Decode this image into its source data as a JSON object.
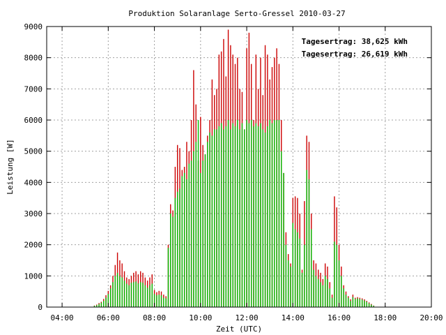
{
  "chart_data": {
    "type": "bar",
    "title": "Produktion Solaranlage Serto-Gressel 2010-03-27",
    "xlabel": "Zeit (UTC)",
    "ylabel": "Leistung [W]",
    "xlim": [
      3.333,
      20.0
    ],
    "ylim": [
      0,
      9000
    ],
    "yticks": [
      0,
      1000,
      2000,
      3000,
      4000,
      5000,
      6000,
      7000,
      8000,
      9000
    ],
    "xticks": [
      {
        "value": 4,
        "label": "04:00"
      },
      {
        "value": 6,
        "label": "06:00"
      },
      {
        "value": 8,
        "label": "08:00"
      },
      {
        "value": 10,
        "label": "10:00"
      },
      {
        "value": 12,
        "label": "12:00"
      },
      {
        "value": 14,
        "label": "14:00"
      },
      {
        "value": 16,
        "label": "16:00"
      },
      {
        "value": 18,
        "label": "18:00"
      },
      {
        "value": 20,
        "label": "20:00"
      }
    ],
    "grid": true,
    "legend_position": "top-right",
    "series": [
      {
        "name": "Tagesertrag: 38,625 kWh",
        "color": "#cc0000",
        "points": [
          [
            5.4,
            50
          ],
          [
            5.5,
            80
          ],
          [
            5.6,
            130
          ],
          [
            5.7,
            170
          ],
          [
            5.8,
            260
          ],
          [
            5.9,
            380
          ],
          [
            6.0,
            520
          ],
          [
            6.1,
            700
          ],
          [
            6.2,
            1000
          ],
          [
            6.3,
            1350
          ],
          [
            6.4,
            1750
          ],
          [
            6.5,
            1500
          ],
          [
            6.6,
            1400
          ],
          [
            6.7,
            1150
          ],
          [
            6.8,
            950
          ],
          [
            6.9,
            900
          ],
          [
            7.0,
            1000
          ],
          [
            7.1,
            1100
          ],
          [
            7.2,
            1150
          ],
          [
            7.3,
            1050
          ],
          [
            7.4,
            1150
          ],
          [
            7.5,
            1100
          ],
          [
            7.6,
            950
          ],
          [
            7.7,
            850
          ],
          [
            7.8,
            950
          ],
          [
            7.9,
            1050
          ],
          [
            8.0,
            550
          ],
          [
            8.1,
            480
          ],
          [
            8.2,
            520
          ],
          [
            8.3,
            500
          ],
          [
            8.4,
            400
          ],
          [
            8.5,
            350
          ],
          [
            8.6,
            2000
          ],
          [
            8.7,
            3300
          ],
          [
            8.8,
            3100
          ],
          [
            8.9,
            4500
          ],
          [
            9.0,
            5200
          ],
          [
            9.1,
            5100
          ],
          [
            9.2,
            4400
          ],
          [
            9.3,
            4500
          ],
          [
            9.4,
            5300
          ],
          [
            9.5,
            5000
          ],
          [
            9.6,
            6000
          ],
          [
            9.7,
            7600
          ],
          [
            9.8,
            6500
          ],
          [
            9.9,
            4700
          ],
          [
            10.0,
            6100
          ],
          [
            10.1,
            5200
          ],
          [
            10.2,
            4900
          ],
          [
            10.3,
            5500
          ],
          [
            10.4,
            6000
          ],
          [
            10.5,
            7300
          ],
          [
            10.6,
            6800
          ],
          [
            10.7,
            7000
          ],
          [
            10.8,
            8100
          ],
          [
            10.9,
            8200
          ],
          [
            11.0,
            8600
          ],
          [
            11.1,
            7400
          ],
          [
            11.2,
            8900
          ],
          [
            11.3,
            8400
          ],
          [
            11.4,
            8100
          ],
          [
            11.5,
            7800
          ],
          [
            11.6,
            8000
          ],
          [
            11.7,
            7000
          ],
          [
            11.8,
            6900
          ],
          [
            11.9,
            5700
          ],
          [
            12.0,
            8300
          ],
          [
            12.1,
            8800
          ],
          [
            12.2,
            7800
          ],
          [
            12.3,
            6000
          ],
          [
            12.4,
            8100
          ],
          [
            12.5,
            7000
          ],
          [
            12.6,
            8000
          ],
          [
            12.7,
            6800
          ],
          [
            12.8,
            8400
          ],
          [
            12.9,
            8100
          ],
          [
            13.0,
            7300
          ],
          [
            13.1,
            7700
          ],
          [
            13.2,
            8000
          ],
          [
            13.3,
            8300
          ],
          [
            13.4,
            7800
          ],
          [
            13.5,
            6000
          ],
          [
            13.6,
            4300
          ],
          [
            13.7,
            2400
          ],
          [
            13.8,
            1700
          ],
          [
            13.9,
            1400
          ],
          [
            14.0,
            3500
          ],
          [
            14.1,
            3550
          ],
          [
            14.2,
            3500
          ],
          [
            14.3,
            3000
          ],
          [
            14.4,
            1200
          ],
          [
            14.5,
            3400
          ],
          [
            14.6,
            5500
          ],
          [
            14.7,
            5300
          ],
          [
            14.8,
            3000
          ],
          [
            14.9,
            1500
          ],
          [
            15.0,
            1400
          ],
          [
            15.1,
            1200
          ],
          [
            15.2,
            1100
          ],
          [
            15.3,
            900
          ],
          [
            15.4,
            1400
          ],
          [
            15.5,
            1300
          ],
          [
            15.6,
            800
          ],
          [
            15.7,
            400
          ],
          [
            15.8,
            3550
          ],
          [
            15.9,
            3200
          ],
          [
            16.0,
            2000
          ],
          [
            16.1,
            1300
          ],
          [
            16.2,
            700
          ],
          [
            16.3,
            500
          ],
          [
            16.4,
            350
          ],
          [
            16.5,
            250
          ],
          [
            16.6,
            400
          ],
          [
            16.7,
            300
          ],
          [
            16.8,
            320
          ],
          [
            16.9,
            300
          ],
          [
            17.0,
            280
          ],
          [
            17.1,
            250
          ],
          [
            17.2,
            200
          ],
          [
            17.3,
            150
          ],
          [
            17.4,
            100
          ],
          [
            17.5,
            50
          ]
        ]
      },
      {
        "name": "Tagesertrag: 26,619 kWh",
        "color": "#00bb00",
        "points": [
          [
            5.4,
            40
          ],
          [
            5.5,
            60
          ],
          [
            5.6,
            100
          ],
          [
            5.7,
            140
          ],
          [
            5.8,
            200
          ],
          [
            5.9,
            300
          ],
          [
            6.0,
            420
          ],
          [
            6.1,
            600
          ],
          [
            6.2,
            800
          ],
          [
            6.3,
            1000
          ],
          [
            6.4,
            1100
          ],
          [
            6.5,
            1000
          ],
          [
            6.6,
            950
          ],
          [
            6.7,
            850
          ],
          [
            6.8,
            750
          ],
          [
            6.9,
            700
          ],
          [
            7.0,
            780
          ],
          [
            7.1,
            800
          ],
          [
            7.2,
            820
          ],
          [
            7.3,
            760
          ],
          [
            7.4,
            800
          ],
          [
            7.5,
            780
          ],
          [
            7.6,
            700
          ],
          [
            7.7,
            620
          ],
          [
            7.8,
            700
          ],
          [
            7.9,
            750
          ],
          [
            8.0,
            420
          ],
          [
            8.1,
            380
          ],
          [
            8.2,
            400
          ],
          [
            8.3,
            380
          ],
          [
            8.4,
            300
          ],
          [
            8.5,
            280
          ],
          [
            8.6,
            1900
          ],
          [
            8.7,
            3000
          ],
          [
            8.8,
            2900
          ],
          [
            8.9,
            3500
          ],
          [
            9.0,
            3700
          ],
          [
            9.1,
            3800
          ],
          [
            9.2,
            4200
          ],
          [
            9.3,
            4300
          ],
          [
            9.4,
            4100
          ],
          [
            9.5,
            4600
          ],
          [
            9.6,
            4700
          ],
          [
            9.7,
            5000
          ],
          [
            9.8,
            5300
          ],
          [
            9.9,
            6000
          ],
          [
            10.0,
            4300
          ],
          [
            10.1,
            4700
          ],
          [
            10.2,
            4900
          ],
          [
            10.3,
            5300
          ],
          [
            10.4,
            5600
          ],
          [
            10.5,
            5500
          ],
          [
            10.6,
            5700
          ],
          [
            10.7,
            5700
          ],
          [
            10.8,
            5800
          ],
          [
            10.9,
            5900
          ],
          [
            11.0,
            5700
          ],
          [
            11.1,
            5800
          ],
          [
            11.2,
            6000
          ],
          [
            11.3,
            5700
          ],
          [
            11.4,
            5900
          ],
          [
            11.5,
            5800
          ],
          [
            11.6,
            6000
          ],
          [
            11.7,
            5700
          ],
          [
            11.8,
            5900
          ],
          [
            11.9,
            5700
          ],
          [
            12.0,
            6000
          ],
          [
            12.1,
            5900
          ],
          [
            12.2,
            6000
          ],
          [
            12.3,
            5800
          ],
          [
            12.4,
            5900
          ],
          [
            12.5,
            5800
          ],
          [
            12.6,
            5900
          ],
          [
            12.7,
            5700
          ],
          [
            12.8,
            5600
          ],
          [
            12.9,
            5800
          ],
          [
            13.0,
            6000
          ],
          [
            13.1,
            5900
          ],
          [
            13.2,
            6000
          ],
          [
            13.3,
            6000
          ],
          [
            13.4,
            6000
          ],
          [
            13.5,
            5000
          ],
          [
            13.6,
            4300
          ],
          [
            13.7,
            2000
          ],
          [
            13.8,
            1500
          ],
          [
            13.9,
            1300
          ],
          [
            14.0,
            2700
          ],
          [
            14.1,
            2500
          ],
          [
            14.2,
            2400
          ],
          [
            14.3,
            2200
          ],
          [
            14.4,
            1100
          ],
          [
            14.5,
            2000
          ],
          [
            14.6,
            4400
          ],
          [
            14.7,
            4100
          ],
          [
            14.8,
            2500
          ],
          [
            14.9,
            1200
          ],
          [
            15.0,
            1000
          ],
          [
            15.1,
            900
          ],
          [
            15.2,
            800
          ],
          [
            15.3,
            700
          ],
          [
            15.4,
            1000
          ],
          [
            15.5,
            900
          ],
          [
            15.6,
            600
          ],
          [
            15.7,
            300
          ],
          [
            15.8,
            2100
          ],
          [
            15.9,
            2000
          ],
          [
            16.0,
            1500
          ],
          [
            16.1,
            1000
          ],
          [
            16.2,
            600
          ],
          [
            16.3,
            400
          ],
          [
            16.4,
            300
          ],
          [
            16.5,
            200
          ],
          [
            16.6,
            320
          ],
          [
            16.7,
            260
          ],
          [
            16.8,
            280
          ],
          [
            16.9,
            260
          ],
          [
            17.0,
            240
          ],
          [
            17.1,
            210
          ],
          [
            17.2,
            170
          ],
          [
            17.3,
            120
          ],
          [
            17.4,
            80
          ],
          [
            17.5,
            40
          ]
        ]
      }
    ]
  }
}
